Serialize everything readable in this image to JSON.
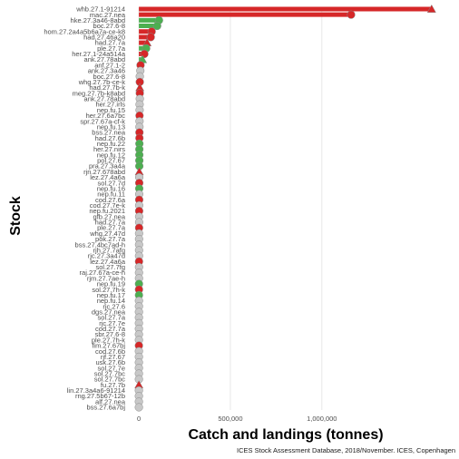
{
  "chart_data": {
    "type": "lollipop",
    "orientation": "horizontal",
    "xlabel": "Catch and landings (tonnes)",
    "ylabel": "Stock",
    "caption": "ICES Stock Assessment Database, 2018/November. ICES, Copenhagen",
    "xlim": [
      -60000,
      1720000
    ],
    "x_ticks": [
      0,
      500000,
      1000000
    ],
    "x_tick_labels": [
      "0",
      "500,000",
      "1,000,000"
    ],
    "grid": "vertical major lines",
    "colors": {
      "red": "#d62728",
      "green": "#4caf50",
      "grey": "#c8c8c8",
      "point_edge": "#8a8a8a",
      "grid": "#e8e8e8"
    },
    "categories": [
      "whb.27.1-91214",
      "mac.27.nea",
      "hke.27.3a46-8abd",
      "boc.27.6-8",
      "hom.27.2a4a5b6a7a-ce-k8",
      "had.27.46a20",
      "had.27.7a",
      "ple.27.7a",
      "her.27.1-24a514a",
      "ank.27.78abd",
      "anf.27.1-2",
      "ank.27.3a46",
      "boc.27.6-8",
      "whg.27.7b-ce-k",
      "had.27.7b-k",
      "meg.27.7b-k8abd",
      "ank.27.78abd",
      "her.27.irls",
      "nep.fu.15",
      "her.27.6a7bc",
      "spr.27.67a-cf-k",
      "nep.fu.13",
      "bss.27.nea",
      "had.27.6b",
      "nep.fu.22",
      "her.27.nirs",
      "nep.fu.12",
      "pol.27.67",
      "pra.27.3a4a",
      "rjn.27.678abd",
      "lez.27.4a6a",
      "sol.27.7d",
      "nep.fu.16",
      "nep.fu.11",
      "cod.27.6a",
      "cod.27.7e-k",
      "nep.fu.2021",
      "gfb.27.nea",
      "had.27.7a",
      "ple.27.7a",
      "whg.27.47d",
      "pok.27.7a",
      "bss.27.4bc7ad-h",
      "rjh.27.7afg",
      "rjc.27.3a47d",
      "lez.27.4a6a",
      "sol.27.7fg",
      "raj.27.67a-ce-h",
      "rjm.27.7ae-h",
      "nep.fu.19",
      "sol.27.7h-k",
      "nep.fu.17",
      "nep.fu.14",
      "rjc.27.6",
      "dgs.27.nea",
      "sol.27.7a",
      "rjc.27.7e",
      "cod.27.7a",
      "sbr.27.6-8",
      "ple.27.7h-k",
      "fim.27.67bj",
      "cod.27.6b",
      "rjf.27.67",
      "usk.27.6b",
      "sol.27.7e",
      "sol.27.7bc",
      "sol.27.7bc",
      "fu.27.7b",
      "lin.27.3a4a6-91214",
      "rng.27.5b67-12b",
      "alf.27.nea",
      "bss.27.6a7bj"
    ],
    "values": [
      1600000,
      1160000,
      110000,
      100000,
      70000,
      65000,
      45000,
      40000,
      30000,
      20000,
      9000,
      8000,
      5000,
      5000,
      5000,
      5000,
      5000,
      4000,
      4000,
      3500,
      3500,
      3200,
      3000,
      3000,
      2800,
      2500,
      2500,
      2400,
      2300,
      2200,
      2100,
      2000,
      1900,
      1800,
      1700,
      1600,
      1500,
      1400,
      1300,
      1200,
      1100,
      1000,
      950,
      900,
      850,
      800,
      750,
      700,
      650,
      600,
      550,
      500,
      450,
      400,
      350,
      300,
      280,
      260,
      240,
      220,
      200,
      180,
      160,
      140,
      120,
      100,
      90,
      80,
      70,
      60,
      50,
      40
    ],
    "color_group": [
      "red",
      "red",
      "green",
      "green",
      "red",
      "red",
      "red",
      "green",
      "red",
      "green",
      "red",
      "grey",
      "grey",
      "red",
      "red",
      "red",
      "grey",
      "grey",
      "grey",
      "red",
      "grey",
      "grey",
      "red",
      "red",
      "green",
      "green",
      "green",
      "green",
      "green",
      "red",
      "grey",
      "red",
      "green",
      "grey",
      "red",
      "grey",
      "red",
      "grey",
      "grey",
      "red",
      "grey",
      "grey",
      "grey",
      "grey",
      "grey",
      "red",
      "grey",
      "grey",
      "grey",
      "green",
      "red",
      "green",
      "grey",
      "grey",
      "grey",
      "grey",
      "grey",
      "grey",
      "grey",
      "grey",
      "red",
      "grey",
      "grey",
      "grey",
      "grey",
      "grey",
      "grey",
      "red",
      "grey",
      "grey",
      "grey",
      "grey"
    ],
    "markers": [
      "triangle",
      "circle",
      "circle",
      "circle",
      "circle",
      "circle",
      "triangle",
      "circle",
      "circle",
      "triangle",
      "circle",
      "circle",
      "circle",
      "circle",
      "triangle",
      "circle",
      "circle",
      "circle",
      "circle",
      "circle",
      "circle",
      "circle",
      "circle",
      "circle",
      "circle",
      "circle",
      "circle",
      "circle",
      "circle",
      "triangle",
      "circle",
      "circle",
      "circle",
      "circle",
      "circle",
      "circle",
      "circle",
      "circle",
      "circle",
      "circle",
      "circle",
      "circle",
      "circle",
      "circle",
      "circle",
      "circle",
      "circle",
      "circle",
      "circle",
      "circle",
      "circle",
      "circle",
      "circle",
      "circle",
      "circle",
      "circle",
      "circle",
      "circle",
      "circle",
      "circle",
      "circle",
      "circle",
      "circle",
      "circle",
      "circle",
      "circle",
      "circle",
      "triangle",
      "circle",
      "circle",
      "circle",
      "circle"
    ]
  }
}
